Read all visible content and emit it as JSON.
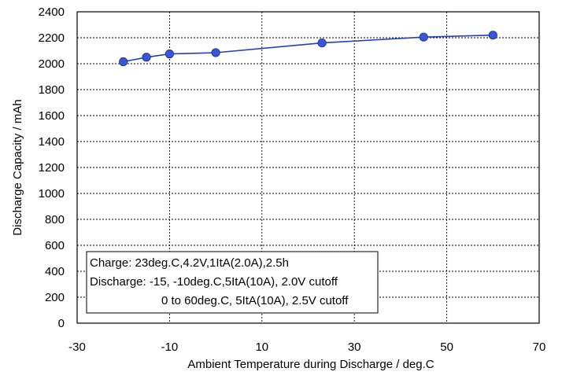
{
  "chart_data": {
    "type": "line",
    "xlabel": "Ambient  Temperature  during  Discharge / deg.C",
    "ylabel": "Discharge Capacity / mAh",
    "xlim": [
      -30,
      70
    ],
    "ylim": [
      0,
      2400
    ],
    "x_ticks": [
      -30,
      -10,
      10,
      30,
      50,
      70
    ],
    "y_ticks": [
      0,
      200,
      400,
      600,
      800,
      1000,
      1200,
      1400,
      1600,
      1800,
      2000,
      2200,
      2400
    ],
    "grid": true,
    "grid_style": "dotted",
    "series": [
      {
        "color": "#1f3fbf",
        "marker_color": "#3a55d6",
        "x": [
          -20,
          -15,
          -10,
          0,
          23,
          45,
          60
        ],
        "y": [
          2015,
          2050,
          2075,
          2085,
          2160,
          2205,
          2220
        ]
      }
    ],
    "annotation": {
      "lines": [
        "Charge: 23deg.C,4.2V,1ItA(2.0A),2.5h",
        "Discharge: -15, -10deg.C,5ItA(10A), 2.0V cutoff",
        "0 to 60deg.C, 5ItA(10A), 2.5V cutoff"
      ],
      "placement": "bottom-left"
    }
  }
}
